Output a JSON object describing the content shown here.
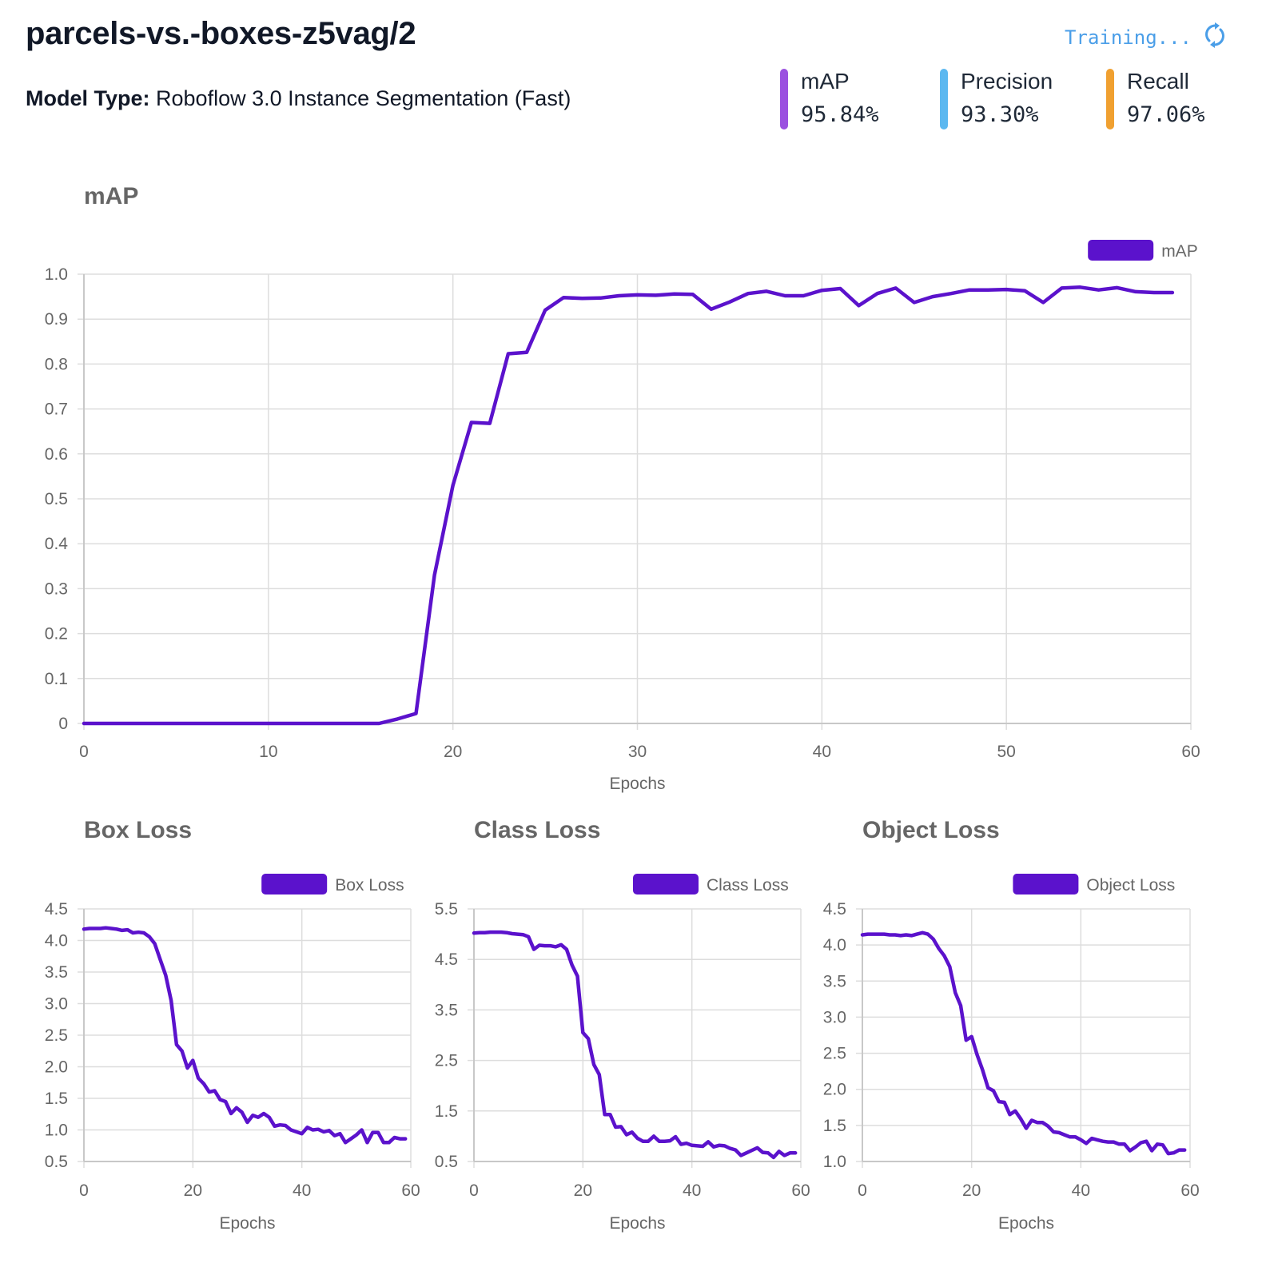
{
  "header": {
    "title": "parcels-vs.-boxes-z5vag/2",
    "model_type_label": "Model Type:",
    "model_type_value": "Roboflow 3.0 Instance Segmentation (Fast)",
    "status_text": "Training...",
    "status_icon": "refresh-icon",
    "status_color": "#4a9ee8"
  },
  "metrics": [
    {
      "name": "mAP",
      "value": "95.84%",
      "color": "#9b51e0"
    },
    {
      "name": "Precision",
      "value": "93.30%",
      "color": "#5cb8f0"
    },
    {
      "name": "Recall",
      "value": "97.06%",
      "color": "#f0a030"
    }
  ],
  "chart_data": [
    {
      "type": "line",
      "title": "mAP",
      "xlabel": "Epochs",
      "ylabel": "",
      "xlim": [
        0,
        60
      ],
      "ylim": [
        0,
        1.0
      ],
      "xticks": [
        "0",
        "10",
        "20",
        "30",
        "40",
        "50",
        "60"
      ],
      "yticks": [
        "0",
        "0.1",
        "0.2",
        "0.3",
        "0.4",
        "0.5",
        "0.6",
        "0.7",
        "0.8",
        "0.9",
        "1.0"
      ],
      "grid": true,
      "legend": "top-right",
      "color": "#5b12cc",
      "series": [
        {
          "name": "mAP",
          "x": [
            0,
            1,
            2,
            3,
            4,
            5,
            6,
            7,
            8,
            9,
            10,
            11,
            12,
            13,
            14,
            15,
            16,
            17,
            18,
            19,
            20,
            21,
            22,
            23,
            24,
            25,
            26,
            27,
            28,
            29,
            30,
            31,
            32,
            33,
            34,
            35,
            36,
            37,
            38,
            39,
            40,
            41,
            42,
            43,
            44,
            45,
            46,
            47,
            48,
            49,
            50,
            51,
            52,
            53,
            54,
            55,
            56,
            57,
            58,
            59
          ],
          "values": [
            0,
            0,
            0,
            0,
            0,
            0,
            0,
            0,
            0,
            0,
            0,
            0,
            0,
            0,
            0,
            0,
            0,
            0.01,
            0.022,
            0.33,
            0.53,
            0.67,
            0.668,
            0.823,
            0.826,
            0.92,
            0.948,
            0.946,
            0.947,
            0.952,
            0.954,
            0.953,
            0.956,
            0.955,
            0.922,
            0.938,
            0.957,
            0.962,
            0.952,
            0.952,
            0.964,
            0.968,
            0.93,
            0.957,
            0.969,
            0.937,
            0.95,
            0.957,
            0.965,
            0.965,
            0.966,
            0.963,
            0.937,
            0.969,
            0.971,
            0.965,
            0.97,
            0.961,
            0.959,
            0.959
          ]
        }
      ]
    },
    {
      "type": "line",
      "title": "Box Loss",
      "xlabel": "Epochs",
      "ylabel": "",
      "xlim": [
        0,
        60
      ],
      "ylim": [
        0.5,
        4.5
      ],
      "xticks": [
        "0",
        "20",
        "40",
        "60"
      ],
      "yticks": [
        "0.5",
        "1.0",
        "1.5",
        "2.0",
        "2.5",
        "3.0",
        "3.5",
        "4.0",
        "4.5"
      ],
      "grid": true,
      "legend": "top-right",
      "color": "#5b12cc",
      "series": [
        {
          "name": "Box Loss",
          "x": [
            0,
            1,
            2,
            3,
            4,
            5,
            6,
            7,
            8,
            9,
            10,
            11,
            12,
            13,
            14,
            15,
            16,
            17,
            18,
            19,
            20,
            21,
            22,
            23,
            24,
            25,
            26,
            27,
            28,
            29,
            30,
            31,
            32,
            33,
            34,
            35,
            36,
            37,
            38,
            39,
            40,
            41,
            42,
            43,
            44,
            45,
            46,
            47,
            48,
            49,
            50,
            51,
            52,
            53,
            54,
            55,
            56,
            57,
            58,
            59
          ],
          "values": [
            4.18,
            4.19,
            4.19,
            4.19,
            4.2,
            4.19,
            4.18,
            4.16,
            4.17,
            4.12,
            4.13,
            4.12,
            4.06,
            3.95,
            3.7,
            3.45,
            3.05,
            2.35,
            2.25,
            1.98,
            2.1,
            1.82,
            1.73,
            1.6,
            1.62,
            1.48,
            1.45,
            1.26,
            1.35,
            1.28,
            1.12,
            1.23,
            1.2,
            1.26,
            1.2,
            1.06,
            1.08,
            1.07,
            1.0,
            0.97,
            0.94,
            1.04,
            1.0,
            1.01,
            0.97,
            0.99,
            0.91,
            0.94,
            0.8,
            0.86,
            0.92,
            1.0,
            0.8,
            0.96,
            0.96,
            0.8,
            0.8,
            0.88,
            0.86,
            0.86
          ]
        }
      ]
    },
    {
      "type": "line",
      "title": "Class Loss",
      "xlabel": "Epochs",
      "ylabel": "",
      "xlim": [
        0,
        60
      ],
      "ylim": [
        0.5,
        5.5
      ],
      "xticks": [
        "0",
        "20",
        "40",
        "60"
      ],
      "yticks": [
        "0.5",
        "1.5",
        "2.5",
        "3.5",
        "4.5",
        "5.5"
      ],
      "grid": true,
      "legend": "top-right",
      "color": "#5b12cc",
      "series": [
        {
          "name": "Class Loss",
          "x": [
            0,
            1,
            2,
            3,
            4,
            5,
            6,
            7,
            8,
            9,
            10,
            11,
            12,
            13,
            14,
            15,
            16,
            17,
            18,
            19,
            20,
            21,
            22,
            23,
            24,
            25,
            26,
            27,
            28,
            29,
            30,
            31,
            32,
            33,
            34,
            35,
            36,
            37,
            38,
            39,
            40,
            41,
            42,
            43,
            44,
            45,
            46,
            47,
            48,
            49,
            50,
            51,
            52,
            53,
            54,
            55,
            56,
            57,
            58,
            59
          ],
          "values": [
            5.02,
            5.03,
            5.03,
            5.04,
            5.04,
            5.04,
            5.03,
            5.01,
            5.0,
            4.99,
            4.95,
            4.7,
            4.78,
            4.77,
            4.77,
            4.75,
            4.79,
            4.7,
            4.39,
            4.17,
            3.05,
            2.93,
            2.42,
            2.22,
            1.43,
            1.43,
            1.18,
            1.19,
            1.03,
            1.08,
            0.96,
            0.9,
            0.9,
            1.0,
            0.9,
            0.9,
            0.91,
            0.99,
            0.84,
            0.86,
            0.82,
            0.81,
            0.8,
            0.89,
            0.79,
            0.82,
            0.81,
            0.76,
            0.73,
            0.62,
            0.67,
            0.72,
            0.77,
            0.68,
            0.67,
            0.58,
            0.7,
            0.62,
            0.67,
            0.67
          ]
        }
      ]
    },
    {
      "type": "line",
      "title": "Object Loss",
      "xlabel": "Epochs",
      "ylabel": "",
      "xlim": [
        0,
        60
      ],
      "ylim": [
        1.0,
        4.5
      ],
      "xticks": [
        "0",
        "20",
        "40",
        "60"
      ],
      "yticks": [
        "1.0",
        "1.5",
        "2.0",
        "2.5",
        "3.0",
        "3.5",
        "4.0",
        "4.5"
      ],
      "grid": true,
      "legend": "top-right",
      "color": "#5b12cc",
      "series": [
        {
          "name": "Object Loss",
          "x": [
            0,
            1,
            2,
            3,
            4,
            5,
            6,
            7,
            8,
            9,
            10,
            11,
            12,
            13,
            14,
            15,
            16,
            17,
            18,
            19,
            20,
            21,
            22,
            23,
            24,
            25,
            26,
            27,
            28,
            29,
            30,
            31,
            32,
            33,
            34,
            35,
            36,
            37,
            38,
            39,
            40,
            41,
            42,
            43,
            44,
            45,
            46,
            47,
            48,
            49,
            50,
            51,
            52,
            53,
            54,
            55,
            56,
            57,
            58,
            59
          ],
          "values": [
            4.14,
            4.15,
            4.15,
            4.15,
            4.15,
            4.14,
            4.14,
            4.13,
            4.14,
            4.13,
            4.15,
            4.17,
            4.15,
            4.08,
            3.95,
            3.85,
            3.7,
            3.34,
            3.16,
            2.68,
            2.73,
            2.48,
            2.27,
            2.02,
            1.98,
            1.83,
            1.82,
            1.65,
            1.7,
            1.59,
            1.46,
            1.57,
            1.54,
            1.54,
            1.49,
            1.41,
            1.4,
            1.37,
            1.34,
            1.34,
            1.3,
            1.25,
            1.32,
            1.3,
            1.28,
            1.27,
            1.27,
            1.24,
            1.24,
            1.15,
            1.2,
            1.26,
            1.28,
            1.15,
            1.24,
            1.23,
            1.11,
            1.12,
            1.16,
            1.16
          ]
        }
      ]
    }
  ]
}
